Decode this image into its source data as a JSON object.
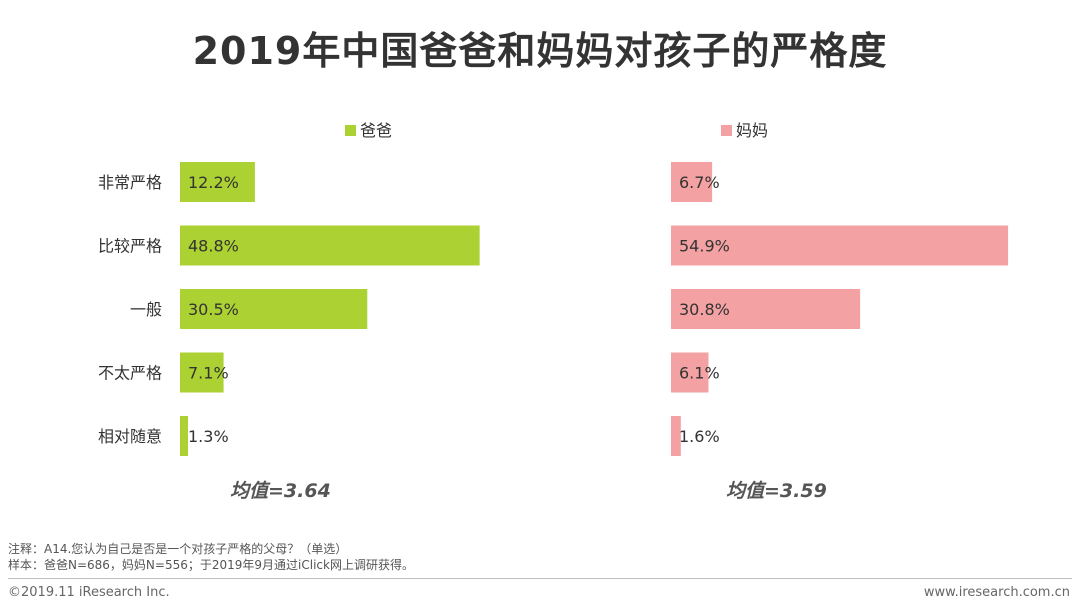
{
  "title": "2019年中国爸爸和妈妈对孩子的严格度",
  "chart_data": {
    "type": "bar",
    "orientation": "horizontal",
    "categories": [
      "非常严格",
      "比较严格",
      "一般",
      "不太严格",
      "相对随意"
    ],
    "series": [
      {
        "name": "爸爸",
        "color": "#acd132",
        "values": [
          12.2,
          48.8,
          30.5,
          7.1,
          1.3
        ],
        "labels": [
          "12.2%",
          "48.8%",
          "30.5%",
          "7.1%",
          "1.3%"
        ],
        "mean_label": "均值=3.64"
      },
      {
        "name": "妈妈",
        "color": "#f3a1a2",
        "values": [
          6.7,
          54.9,
          30.8,
          6.1,
          1.6
        ],
        "labels": [
          "6.7%",
          "54.9%",
          "30.8%",
          "6.1%",
          "1.6%"
        ],
        "mean_label": "均值=3.59"
      }
    ],
    "value_unit": "%",
    "legend": "top",
    "grid": false
  },
  "notes": {
    "line1": "注释：A14.您认为自己是否是一个对孩子严格的父母？（单选）",
    "line2": "样本：爸爸N=686，妈妈N=556；于2019年9月通过iClick网上调研获得。"
  },
  "footer": {
    "copyright": "©2019.11 iResearch Inc.",
    "website": "www.iresearch.com.cn"
  }
}
